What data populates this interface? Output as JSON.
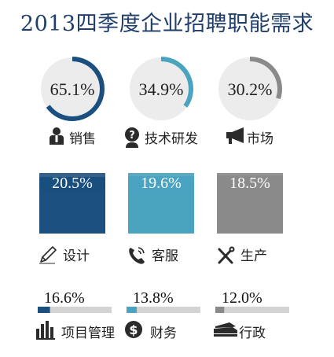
{
  "title": "2013四季度企业招聘职能需求",
  "colors": {
    "navy": "#1a4f7f",
    "teal": "#4aa3bf",
    "gray": "#8a8a8a",
    "track": "#d3d3d3",
    "box_light": "#c6c6c6",
    "title": "#1f3e6a",
    "icon": "#2b2b2b"
  },
  "chart_data": {
    "type": "infographic",
    "title": "2013四季度企业招聘职能需求",
    "unit": "%",
    "rings": [
      {
        "label": "销售",
        "value": 65.1,
        "display": "65.1%",
        "icon": "salesperson-icon",
        "color": "#1a4f7f"
      },
      {
        "label": "技术研发",
        "value": 34.9,
        "display": "34.9%",
        "icon": "question-person-icon",
        "color": "#4aa3bf"
      },
      {
        "label": "市场",
        "value": 30.2,
        "display": "30.2%",
        "icon": "megaphone-icon",
        "color": "#8a8a8a"
      }
    ],
    "boxes": [
      {
        "label": "设计",
        "value": 20.5,
        "display": "20.5%",
        "icon": "pencil-icon",
        "color": "#1a4f7f"
      },
      {
        "label": "客服",
        "value": 19.6,
        "display": "19.6%",
        "icon": "phone-icon",
        "color": "#4aa3bf"
      },
      {
        "label": "生产",
        "value": 18.5,
        "display": "18.5%",
        "icon": "tools-icon",
        "color": "#8a8a8a"
      }
    ],
    "bars": [
      {
        "label": "项目管理",
        "value": 16.6,
        "display": "16.6%",
        "icon": "bar-chart-icon",
        "color": "#1a4f7f"
      },
      {
        "label": "财务",
        "value": 13.8,
        "display": "13.8%",
        "icon": "dollar-icon",
        "color": "#4aa3bf"
      },
      {
        "label": "行政",
        "value": 12.0,
        "display": "12.0%",
        "icon": "stapler-icon",
        "color": "#8a8a8a"
      }
    ]
  }
}
